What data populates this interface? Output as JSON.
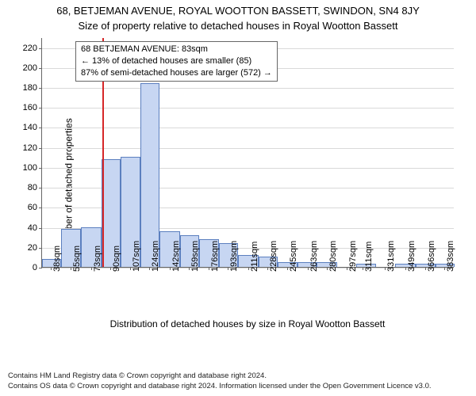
{
  "title_line1": "68, BETJEMAN AVENUE, ROYAL WOOTTON BASSETT, SWINDON, SN4 8JY",
  "title_line2": "Size of property relative to detached houses in Royal Wootton Bassett",
  "ylabel": "Number of detached properties",
  "xlabel": "Distribution of detached houses by size in Royal Wootton Bassett",
  "footer_line1": "Contains HM Land Registry data © Crown copyright and database right 2024.",
  "footer_line2": "Contains OS data © Crown copyright and database right 2024. Information licensed under the Open Government Licence v3.0.",
  "chart": {
    "type": "histogram",
    "bar_color": "#c7d6f2",
    "bar_border": "#5b7fbf",
    "grid_color": "#d9d9d9",
    "marker_color": "#d62728",
    "marker_x": 83,
    "background": "#ffffff",
    "ylim": [
      0,
      230
    ],
    "yticks": [
      0,
      20,
      40,
      60,
      80,
      100,
      120,
      140,
      160,
      180,
      200,
      220
    ],
    "x_min": 30,
    "x_max": 392,
    "bins": [
      {
        "start": 30,
        "end": 47,
        "value": 8
      },
      {
        "start": 47,
        "end": 64,
        "value": 38
      },
      {
        "start": 64,
        "end": 82,
        "value": 40
      },
      {
        "start": 82,
        "end": 99,
        "value": 108
      },
      {
        "start": 99,
        "end": 116,
        "value": 110
      },
      {
        "start": 116,
        "end": 133,
        "value": 184
      },
      {
        "start": 133,
        "end": 151,
        "value": 36
      },
      {
        "start": 151,
        "end": 168,
        "value": 32
      },
      {
        "start": 168,
        "end": 185,
        "value": 28
      },
      {
        "start": 185,
        "end": 202,
        "value": 24
      },
      {
        "start": 202,
        "end": 220,
        "value": 12
      },
      {
        "start": 220,
        "end": 237,
        "value": 10
      },
      {
        "start": 237,
        "end": 254,
        "value": 5
      },
      {
        "start": 254,
        "end": 271,
        "value": 5
      },
      {
        "start": 271,
        "end": 289,
        "value": 5
      },
      {
        "start": 289,
        "end": 306,
        "value": 0
      },
      {
        "start": 306,
        "end": 323,
        "value": 3
      },
      {
        "start": 323,
        "end": 340,
        "value": 0
      },
      {
        "start": 340,
        "end": 358,
        "value": 3
      },
      {
        "start": 358,
        "end": 375,
        "value": 3
      },
      {
        "start": 375,
        "end": 392,
        "value": 3
      }
    ],
    "xticks": [
      38,
      55,
      73,
      90,
      107,
      124,
      142,
      159,
      176,
      193,
      211,
      228,
      245,
      263,
      280,
      297,
      311,
      331,
      349,
      366,
      383
    ],
    "xtick_suffix": "sqm"
  },
  "annotation": {
    "line1": "68 BETJEMAN AVENUE: 83sqm",
    "line2": "← 13% of detached houses are smaller (85)",
    "line3": "87% of semi-detached houses are larger (572) →"
  }
}
